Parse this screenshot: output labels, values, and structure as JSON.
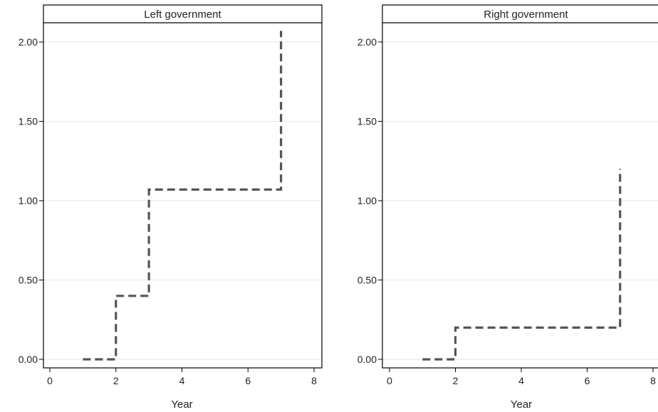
{
  "chart_data": [
    {
      "type": "line",
      "title": "Left government",
      "xlabel": "Year",
      "ylabel": "",
      "xlim": [
        0,
        8
      ],
      "ylim": [
        0,
        2.1
      ],
      "xticks": [
        0,
        2,
        4,
        6,
        8
      ],
      "xtick_labels": [
        "0",
        "2",
        "4",
        "6",
        "8"
      ],
      "yticks": [
        0,
        0.5,
        1,
        1.5,
        2
      ],
      "ytick_labels": [
        "0.00",
        "0.50",
        "1.00",
        "1.50",
        "2.00"
      ],
      "grid": "horizontal",
      "line_style": "dashed-step",
      "color": "#555555",
      "series": [
        {
          "x": [
            1,
            2,
            3,
            7
          ],
          "y": [
            0,
            0.4,
            1.07,
            2.07
          ]
        }
      ]
    },
    {
      "type": "line",
      "title": "Right government",
      "xlabel": "Year",
      "ylabel": "",
      "xlim": [
        0,
        8
      ],
      "ylim": [
        0,
        2.1
      ],
      "xticks": [
        0,
        2,
        4,
        6,
        8
      ],
      "xtick_labels": [
        "0",
        "2",
        "4",
        "6",
        "8"
      ],
      "yticks": [
        0,
        0.5,
        1,
        1.5,
        2
      ],
      "ytick_labels": [
        "0.00",
        "0.50",
        "1.00",
        "1.50",
        "2.00"
      ],
      "grid": "horizontal",
      "line_style": "dashed-step",
      "color": "#555555",
      "series": [
        {
          "x": [
            1,
            2,
            7
          ],
          "y": [
            0,
            0.2,
            1.2
          ]
        }
      ]
    }
  ]
}
